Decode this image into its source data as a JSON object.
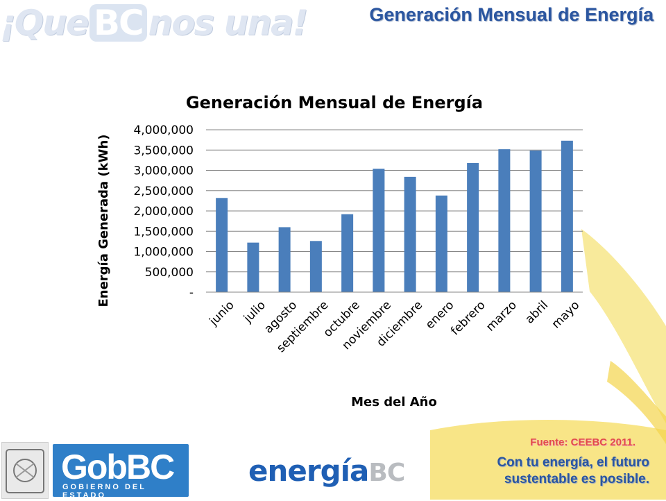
{
  "header": {
    "slogan_pre": "¡Que",
    "slogan_bc": "BC",
    "slogan_post": "nos una!",
    "slide_title": "Generación Mensual de Energía"
  },
  "chart_data": {
    "type": "bar",
    "title": "Generación Mensual de Energía",
    "xlabel": "Mes del Año",
    "ylabel": "Energía Generada (kWh)",
    "categories": [
      "junio",
      "julio",
      "agosto",
      "septiembre",
      "octubre",
      "noviembre",
      "diciembre",
      "enero",
      "febrero",
      "marzo",
      "abril",
      "mayo"
    ],
    "values": [
      2320000,
      1220000,
      1600000,
      1260000,
      1920000,
      3040000,
      2840000,
      2380000,
      3180000,
      3520000,
      3490000,
      3730000
    ],
    "ylim": [
      0,
      4000000
    ],
    "yticks": [
      "-",
      "500,000",
      "1,000,000",
      "1,500,000",
      "2,000,000",
      "2,500,000",
      "3,000,000",
      "3,500,000",
      "4,000,000"
    ],
    "grid": true,
    "legend": "none",
    "bar_color": "#4a7ebb"
  },
  "footer": {
    "gob_logo": "GobBC",
    "gob_sub": "GOBIERNO DEL ESTADO",
    "energia_main": "energía",
    "energia_bc": "BC",
    "source": "Fuente: CEEBC 2011.",
    "tagline_line1": "Con tu energía, el futuro",
    "tagline_line2": "sustentable es posible."
  },
  "colors": {
    "title_blue": "#2b56a0",
    "source_red": "#e24b4b",
    "decor_yellow": "#f6e27a"
  }
}
